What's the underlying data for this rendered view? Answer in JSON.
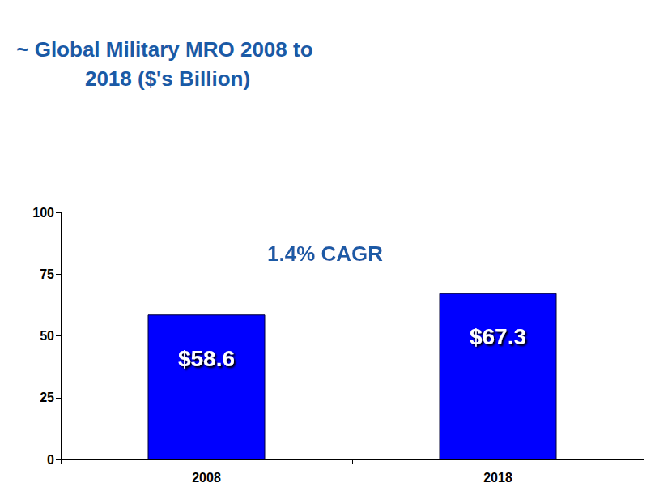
{
  "chart_data": {
    "type": "bar",
    "title": "~ Global Military MRO 2008 to 2018 ($'s Billion)",
    "annotation": "1.4% CAGR",
    "categories": [
      "2008",
      "2018"
    ],
    "values": [
      58.6,
      67.3
    ],
    "value_labels": [
      "$58.6",
      "$67.3"
    ],
    "color": "#0000ff",
    "data_labels": true,
    "ylim": [
      0,
      100
    ],
    "yticks": [
      0,
      25,
      50,
      75,
      100
    ],
    "grid": false
  }
}
